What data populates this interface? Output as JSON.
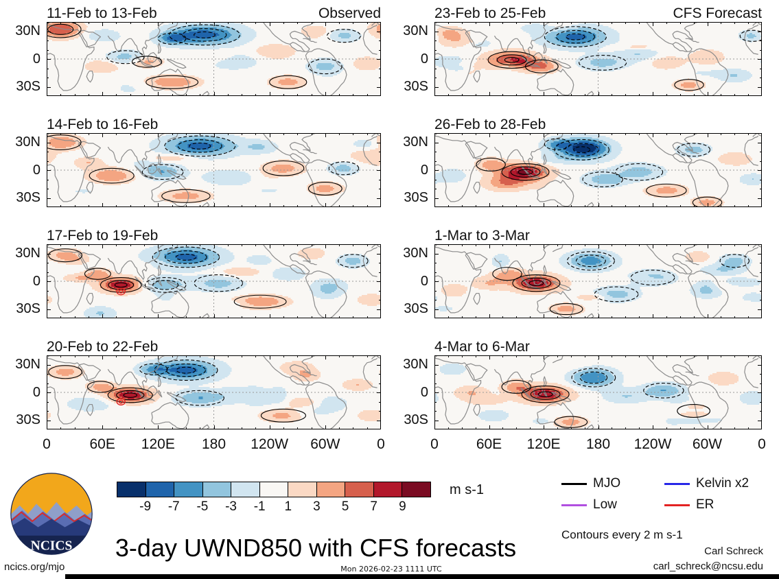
{
  "title": "3-day UWND850 with CFS forecasts",
  "logo": {
    "text": "NCICS"
  },
  "axes": {
    "lat_labels": [
      "30N",
      "0",
      "30S"
    ],
    "lon_labels": [
      "0",
      "60E",
      "120E",
      "180",
      "120W",
      "60W",
      "0"
    ]
  },
  "colorbar": {
    "labels": [
      "-9",
      "-7",
      "-5",
      "-3",
      "-1",
      "1",
      "3",
      "5",
      "7",
      "9"
    ],
    "colors": [
      "#08306b",
      "#1f64ab",
      "#4393c3",
      "#92c5de",
      "#d1e5f0",
      "#f9f7f4",
      "#fbd9c4",
      "#f4a582",
      "#d6604d",
      "#b2182b",
      "#7a0b22"
    ],
    "units": "m s-1"
  },
  "legend": {
    "items": [
      {
        "label": "MJO",
        "color": "#000000"
      },
      {
        "label": "Kelvin x2",
        "color": "#2727e8"
      },
      {
        "label": "Low",
        "color": "#b14fe0"
      },
      {
        "label": "ER",
        "color": "#e32222"
      }
    ],
    "note": "Contours every 2 m s-1"
  },
  "footer": {
    "left": "ncics.org/mjo",
    "center": "Mon 2026-02-23 1111 UTC",
    "credit_name": "Carl Schreck",
    "credit_email": "carl_schreck@ncsu.edu"
  },
  "chart_data": {
    "type": "heatmap",
    "subtype": "filled-contour anomaly maps, 2 columns x 4 rows",
    "title": "3-day UWND850 with CFS forecasts",
    "variable": "850-hPa zonal wind anomaly",
    "units": "m s-1",
    "columns": [
      "Observed",
      "CFS Forecast"
    ],
    "lon_range": [
      0,
      360
    ],
    "lat_range": [
      -40,
      40
    ],
    "lon_ticks": [
      "0",
      "60E",
      "120E",
      "180",
      "120W",
      "60W",
      "0"
    ],
    "lat_ticks": [
      "30N",
      "0",
      "30S"
    ],
    "shading_levels": [
      -9,
      -7,
      -5,
      -3,
      -1,
      1,
      3,
      5,
      7,
      9
    ],
    "contour_note": "Contours every 2 m s-1",
    "features_format": "[lon_deg, lat_deg, lon_radius_deg, lat_radius_deg, anomaly_amplitude_m_s]",
    "panels": [
      {
        "title": "11-Feb to 13-Feb",
        "column_label": "Observed",
        "features": [
          [
            15,
            32,
            22,
            9,
            7
          ],
          [
            60,
            25,
            18,
            7,
            -3
          ],
          [
            170,
            26,
            38,
            11,
            -9
          ],
          [
            135,
            22,
            15,
            6,
            -5
          ],
          [
            85,
            2,
            20,
            7,
            -4
          ],
          [
            60,
            -8,
            18,
            7,
            3
          ],
          [
            108,
            -3,
            16,
            6,
            4
          ],
          [
            135,
            -25,
            28,
            7,
            5
          ],
          [
            200,
            -2,
            28,
            9,
            -3
          ],
          [
            245,
            8,
            22,
            8,
            3
          ],
          [
            260,
            -25,
            20,
            7,
            4
          ],
          [
            300,
            -8,
            18,
            8,
            -4
          ],
          [
            320,
            25,
            18,
            7,
            -4
          ],
          [
            290,
            30,
            15,
            6,
            3
          ],
          [
            345,
            -5,
            15,
            7,
            3
          ]
        ]
      },
      {
        "title": "14-Feb to 16-Feb",
        "features": [
          [
            15,
            30,
            22,
            8,
            5
          ],
          [
            165,
            26,
            38,
            11,
            -8
          ],
          [
            70,
            -6,
            24,
            8,
            5
          ],
          [
            45,
            8,
            15,
            6,
            3
          ],
          [
            125,
            -2,
            22,
            8,
            -5
          ],
          [
            150,
            -28,
            26,
            7,
            4
          ],
          [
            195,
            -8,
            26,
            8,
            -3
          ],
          [
            255,
            2,
            22,
            8,
            4
          ],
          [
            300,
            -20,
            18,
            7,
            4
          ],
          [
            320,
            2,
            16,
            7,
            -4
          ],
          [
            345,
            28,
            15,
            6,
            -3
          ],
          [
            230,
            25,
            18,
            7,
            -3
          ]
        ]
      },
      {
        "title": "17-Feb to 19-Feb",
        "features": [
          [
            80,
            -4,
            22,
            8,
            9
          ],
          [
            55,
            8,
            14,
            6,
            4
          ],
          [
            150,
            26,
            36,
            11,
            -8
          ],
          [
            128,
            -4,
            22,
            8,
            -6
          ],
          [
            185,
            -2,
            26,
            9,
            -4
          ],
          [
            230,
            -22,
            28,
            7,
            5
          ],
          [
            260,
            8,
            18,
            7,
            -3
          ],
          [
            20,
            28,
            18,
            7,
            4
          ],
          [
            305,
            -5,
            18,
            8,
            -3
          ],
          [
            330,
            22,
            16,
            7,
            -4
          ],
          [
            350,
            -20,
            15,
            6,
            3
          ],
          [
            285,
            30,
            14,
            6,
            3
          ]
        ],
        "er_marks": [
          [
            80,
            -11
          ]
        ]
      },
      {
        "title": "20-Feb to 22-Feb",
        "features": [
          [
            90,
            -3,
            24,
            8,
            9
          ],
          [
            58,
            6,
            14,
            6,
            4
          ],
          [
            150,
            24,
            34,
            11,
            -8
          ],
          [
            165,
            -6,
            26,
            8,
            -5
          ],
          [
            215,
            -2,
            26,
            9,
            -3
          ],
          [
            255,
            -25,
            24,
            7,
            4
          ],
          [
            20,
            22,
            18,
            7,
            4
          ],
          [
            115,
            25,
            15,
            6,
            -4
          ],
          [
            305,
            -12,
            18,
            8,
            -3
          ],
          [
            335,
            8,
            15,
            6,
            3
          ],
          [
            350,
            -25,
            14,
            6,
            3
          ],
          [
            280,
            18,
            14,
            6,
            3
          ]
        ],
        "er_marks": [
          [
            80,
            -10
          ]
        ]
      },
      {
        "title": "23-Feb to 25-Feb",
        "column_label": "CFS Forecast",
        "features": [
          [
            85,
            -1,
            26,
            9,
            9
          ],
          [
            118,
            -8,
            18,
            7,
            5
          ],
          [
            155,
            24,
            34,
            11,
            -8
          ],
          [
            185,
            -4,
            26,
            8,
            -4
          ],
          [
            225,
            6,
            22,
            8,
            -3
          ],
          [
            255,
            -4,
            18,
            7,
            3
          ],
          [
            15,
            28,
            16,
            7,
            3
          ],
          [
            50,
            18,
            14,
            6,
            -3
          ],
          [
            300,
            2,
            18,
            8,
            3
          ],
          [
            330,
            -18,
            18,
            7,
            -3
          ],
          [
            350,
            25,
            14,
            6,
            -4
          ],
          [
            280,
            -28,
            16,
            6,
            4
          ]
        ]
      },
      {
        "title": "26-Feb to 28-Feb",
        "features": [
          [
            100,
            -2,
            26,
            9,
            9
          ],
          [
            62,
            6,
            16,
            7,
            4
          ],
          [
            162,
            22,
            30,
            11,
            -8
          ],
          [
            185,
            -10,
            22,
            8,
            -4
          ],
          [
            225,
            -2,
            26,
            9,
            -4
          ],
          [
            285,
            22,
            18,
            7,
            -4
          ],
          [
            255,
            -22,
            22,
            7,
            4
          ],
          [
            20,
            -6,
            14,
            7,
            -3
          ],
          [
            330,
            12,
            18,
            7,
            3
          ],
          [
            350,
            -10,
            14,
            6,
            -3
          ],
          [
            300,
            -35,
            16,
            6,
            4
          ],
          [
            135,
            28,
            14,
            6,
            -4
          ]
        ]
      },
      {
        "title": "1-Mar to 3-Mar",
        "features": [
          [
            112,
            -2,
            26,
            9,
            9
          ],
          [
            80,
            8,
            16,
            7,
            4
          ],
          [
            172,
            22,
            26,
            10,
            -6
          ],
          [
            200,
            -14,
            24,
            8,
            -4
          ],
          [
            240,
            4,
            24,
            8,
            -4
          ],
          [
            60,
            -2,
            18,
            7,
            3
          ],
          [
            20,
            -10,
            14,
            7,
            3
          ],
          [
            300,
            -10,
            18,
            8,
            -3
          ],
          [
            330,
            22,
            16,
            7,
            -4
          ],
          [
            290,
            26,
            13,
            6,
            3
          ],
          [
            350,
            -28,
            14,
            6,
            3
          ],
          [
            145,
            -30,
            18,
            6,
            4
          ]
        ]
      },
      {
        "title": "4-Mar to 6-Mar",
        "features": [
          [
            122,
            -2,
            26,
            9,
            9
          ],
          [
            90,
            6,
            16,
            7,
            4
          ],
          [
            175,
            16,
            24,
            10,
            -7
          ],
          [
            210,
            -4,
            24,
            8,
            -3
          ],
          [
            252,
            2,
            22,
            8,
            -5
          ],
          [
            285,
            -20,
            18,
            7,
            4
          ],
          [
            40,
            0,
            18,
            7,
            3
          ],
          [
            350,
            -6,
            14,
            7,
            -3
          ],
          [
            318,
            15,
            16,
            7,
            3
          ],
          [
            150,
            -32,
            18,
            6,
            4
          ],
          [
            20,
            25,
            14,
            6,
            -3
          ],
          [
            65,
            -25,
            16,
            6,
            -3
          ]
        ]
      }
    ]
  }
}
